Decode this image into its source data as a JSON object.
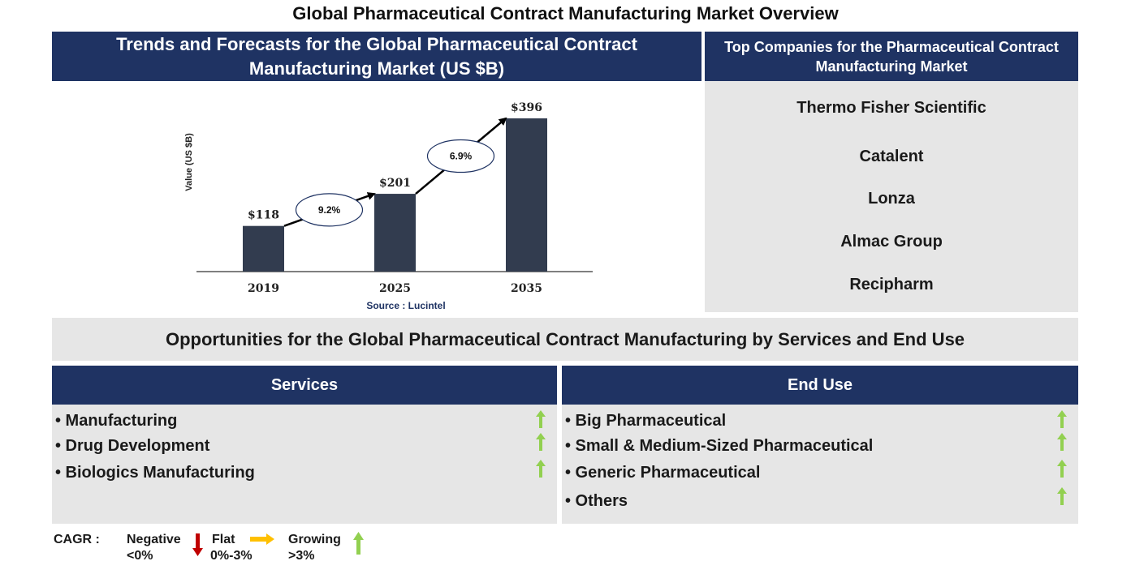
{
  "title": "Global Pharmaceutical Contract Manufacturing Market Overview",
  "trends_panel": {
    "heading": "Trends and Forecasts for the Global Pharmaceutical Contract Manufacturing Market (US $B)",
    "source": "Source : Lucintel"
  },
  "chart_data": {
    "type": "bar",
    "categories": [
      "2019",
      "2025",
      "2035"
    ],
    "values": [
      118,
      201,
      396
    ],
    "value_labels": [
      "$118",
      "$201",
      "$396"
    ],
    "ylabel": "Value (US $B)",
    "xlabel": "",
    "ylim": [
      0,
      396
    ],
    "grid": false,
    "bar_color": "#323c4f",
    "cagr_annotations": [
      {
        "from": "2019",
        "to": "2025",
        "label": "9.2%"
      },
      {
        "from": "2025",
        "to": "2035",
        "label": "6.9%"
      }
    ]
  },
  "companies_panel": {
    "heading": "Top Companies for the Pharmaceutical Contract Manufacturing Market",
    "companies": [
      "Thermo Fisher Scientific",
      "Catalent",
      "Lonza",
      "Almac Group",
      "Recipharm"
    ]
  },
  "opportunities": {
    "heading": "Opportunities for the Global Pharmaceutical Contract Manufacturing by Services and End Use",
    "services": {
      "heading": "Services",
      "items": [
        "• Manufacturing",
        "• Drug Development",
        "• Biologics Manufacturing"
      ],
      "trend_icon": "green-up-arrow-icon"
    },
    "end_use": {
      "heading": "End Use",
      "items": [
        "• Big Pharmaceutical",
        "• Small & Medium-Sized Pharmaceutical",
        "• Generic Pharmaceutical",
        "• Others"
      ],
      "trend_icon": "green-up-arrow-icon"
    }
  },
  "legend": {
    "label": "CAGR :",
    "negative": {
      "name": "Negative",
      "range": "<0%",
      "color": "#c00000"
    },
    "flat": {
      "name": "Flat",
      "range": "0%-3%",
      "color": "#ffc000"
    },
    "growing": {
      "name": "Growing",
      "range": ">3%",
      "color": "#92d050"
    }
  },
  "colors": {
    "header_navy": "#1f3363",
    "panel_grey": "#e6e6e6",
    "growth_green": "#92d050"
  }
}
